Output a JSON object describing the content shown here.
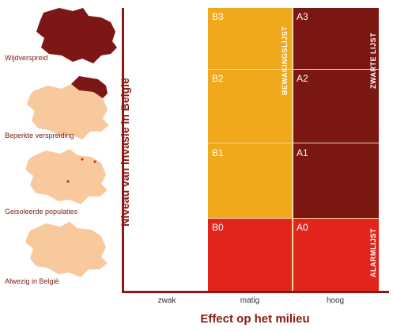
{
  "maps": [
    {
      "label": "Wijdverspreid"
    },
    {
      "label": "Beperkte verspreiding"
    },
    {
      "label": "Geisoleerde populaties"
    },
    {
      "label": "Afwezig in België"
    }
  ],
  "y_axis_title": "Niveau van invasie in België",
  "x_axis_title": "Effect op het milieu",
  "x_ticks": [
    "zwak",
    "matig",
    "hoog"
  ],
  "cells": {
    "B3": "B3",
    "A3": "A3",
    "B2": "B2",
    "A2": "A2",
    "B1": "B1",
    "A1": "A1",
    "B0": "B0",
    "A0": "A0"
  },
  "lists": {
    "bewakingslijst": "BEWAKINGSLIJST",
    "zwarte_lijst": "ZWARTE LIJST",
    "alarmlijst": "ALARMLIJST"
  },
  "colors": {
    "dark_red": "#7a1713",
    "orange": "#f0a81d",
    "red": "#e1251c",
    "map_dark": "#7d1715",
    "map_light": "#f7c99d"
  }
}
